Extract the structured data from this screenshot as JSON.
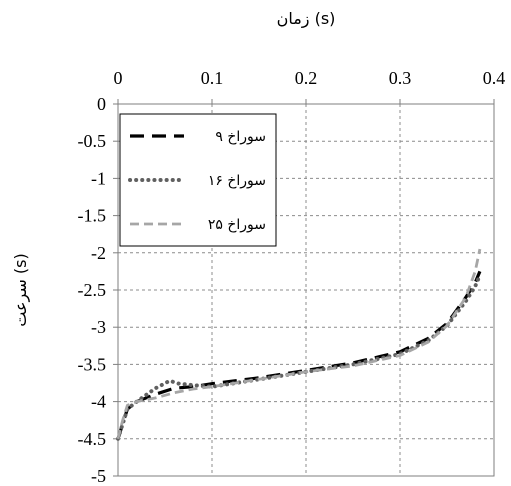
{
  "chart_data": {
    "type": "line",
    "xlabel": "زمان (s)",
    "ylabel": "سرعت (s)",
    "xlim": [
      0,
      0.4
    ],
    "ylim": [
      -5,
      0
    ],
    "x_ticks": [
      "0",
      "0.1",
      "0.2",
      "0.3",
      "0.4"
    ],
    "y_ticks": [
      "0",
      "-0.5",
      "-1",
      "-1.5",
      "-2",
      "-2.5",
      "-3",
      "-3.5",
      "-4",
      "-4.5",
      "-5"
    ],
    "x_axis_position": "top",
    "grid": true,
    "legend_position": "top-left",
    "series": [
      {
        "name": "۹ سوراخ",
        "color": "#000000",
        "style": "long-dash",
        "x": [
          0.0,
          0.005,
          0.01,
          0.02,
          0.04,
          0.06,
          0.08,
          0.1,
          0.15,
          0.2,
          0.25,
          0.3,
          0.33,
          0.35,
          0.37,
          0.38,
          0.385
        ],
        "y": [
          -4.5,
          -4.3,
          -4.1,
          -4.0,
          -3.9,
          -3.82,
          -3.8,
          -3.76,
          -3.68,
          -3.58,
          -3.48,
          -3.33,
          -3.15,
          -2.95,
          -2.6,
          -2.4,
          -2.25
        ]
      },
      {
        "name": "۱۶ سوراخ",
        "color": "#606060",
        "style": "dotted",
        "x": [
          0.0,
          0.005,
          0.01,
          0.02,
          0.04,
          0.055,
          0.065,
          0.08,
          0.1,
          0.15,
          0.2,
          0.25,
          0.3,
          0.33,
          0.35,
          0.37,
          0.38,
          0.385
        ],
        "y": [
          -4.5,
          -4.3,
          -4.1,
          -4.0,
          -3.82,
          -3.72,
          -3.76,
          -3.78,
          -3.8,
          -3.7,
          -3.6,
          -3.5,
          -3.36,
          -3.18,
          -2.98,
          -2.65,
          -2.45,
          -2.3
        ]
      },
      {
        "name": "۲۵ سوراخ",
        "color": "#a6a6a6",
        "style": "dashed",
        "x": [
          0.0,
          0.005,
          0.01,
          0.02,
          0.04,
          0.06,
          0.08,
          0.1,
          0.15,
          0.2,
          0.25,
          0.3,
          0.33,
          0.35,
          0.37,
          0.38,
          0.385
        ],
        "y": [
          -4.5,
          -4.25,
          -4.05,
          -4.0,
          -3.95,
          -3.88,
          -3.83,
          -3.8,
          -3.7,
          -3.6,
          -3.52,
          -3.38,
          -3.2,
          -2.98,
          -2.6,
          -2.25,
          -1.95
        ]
      }
    ]
  }
}
